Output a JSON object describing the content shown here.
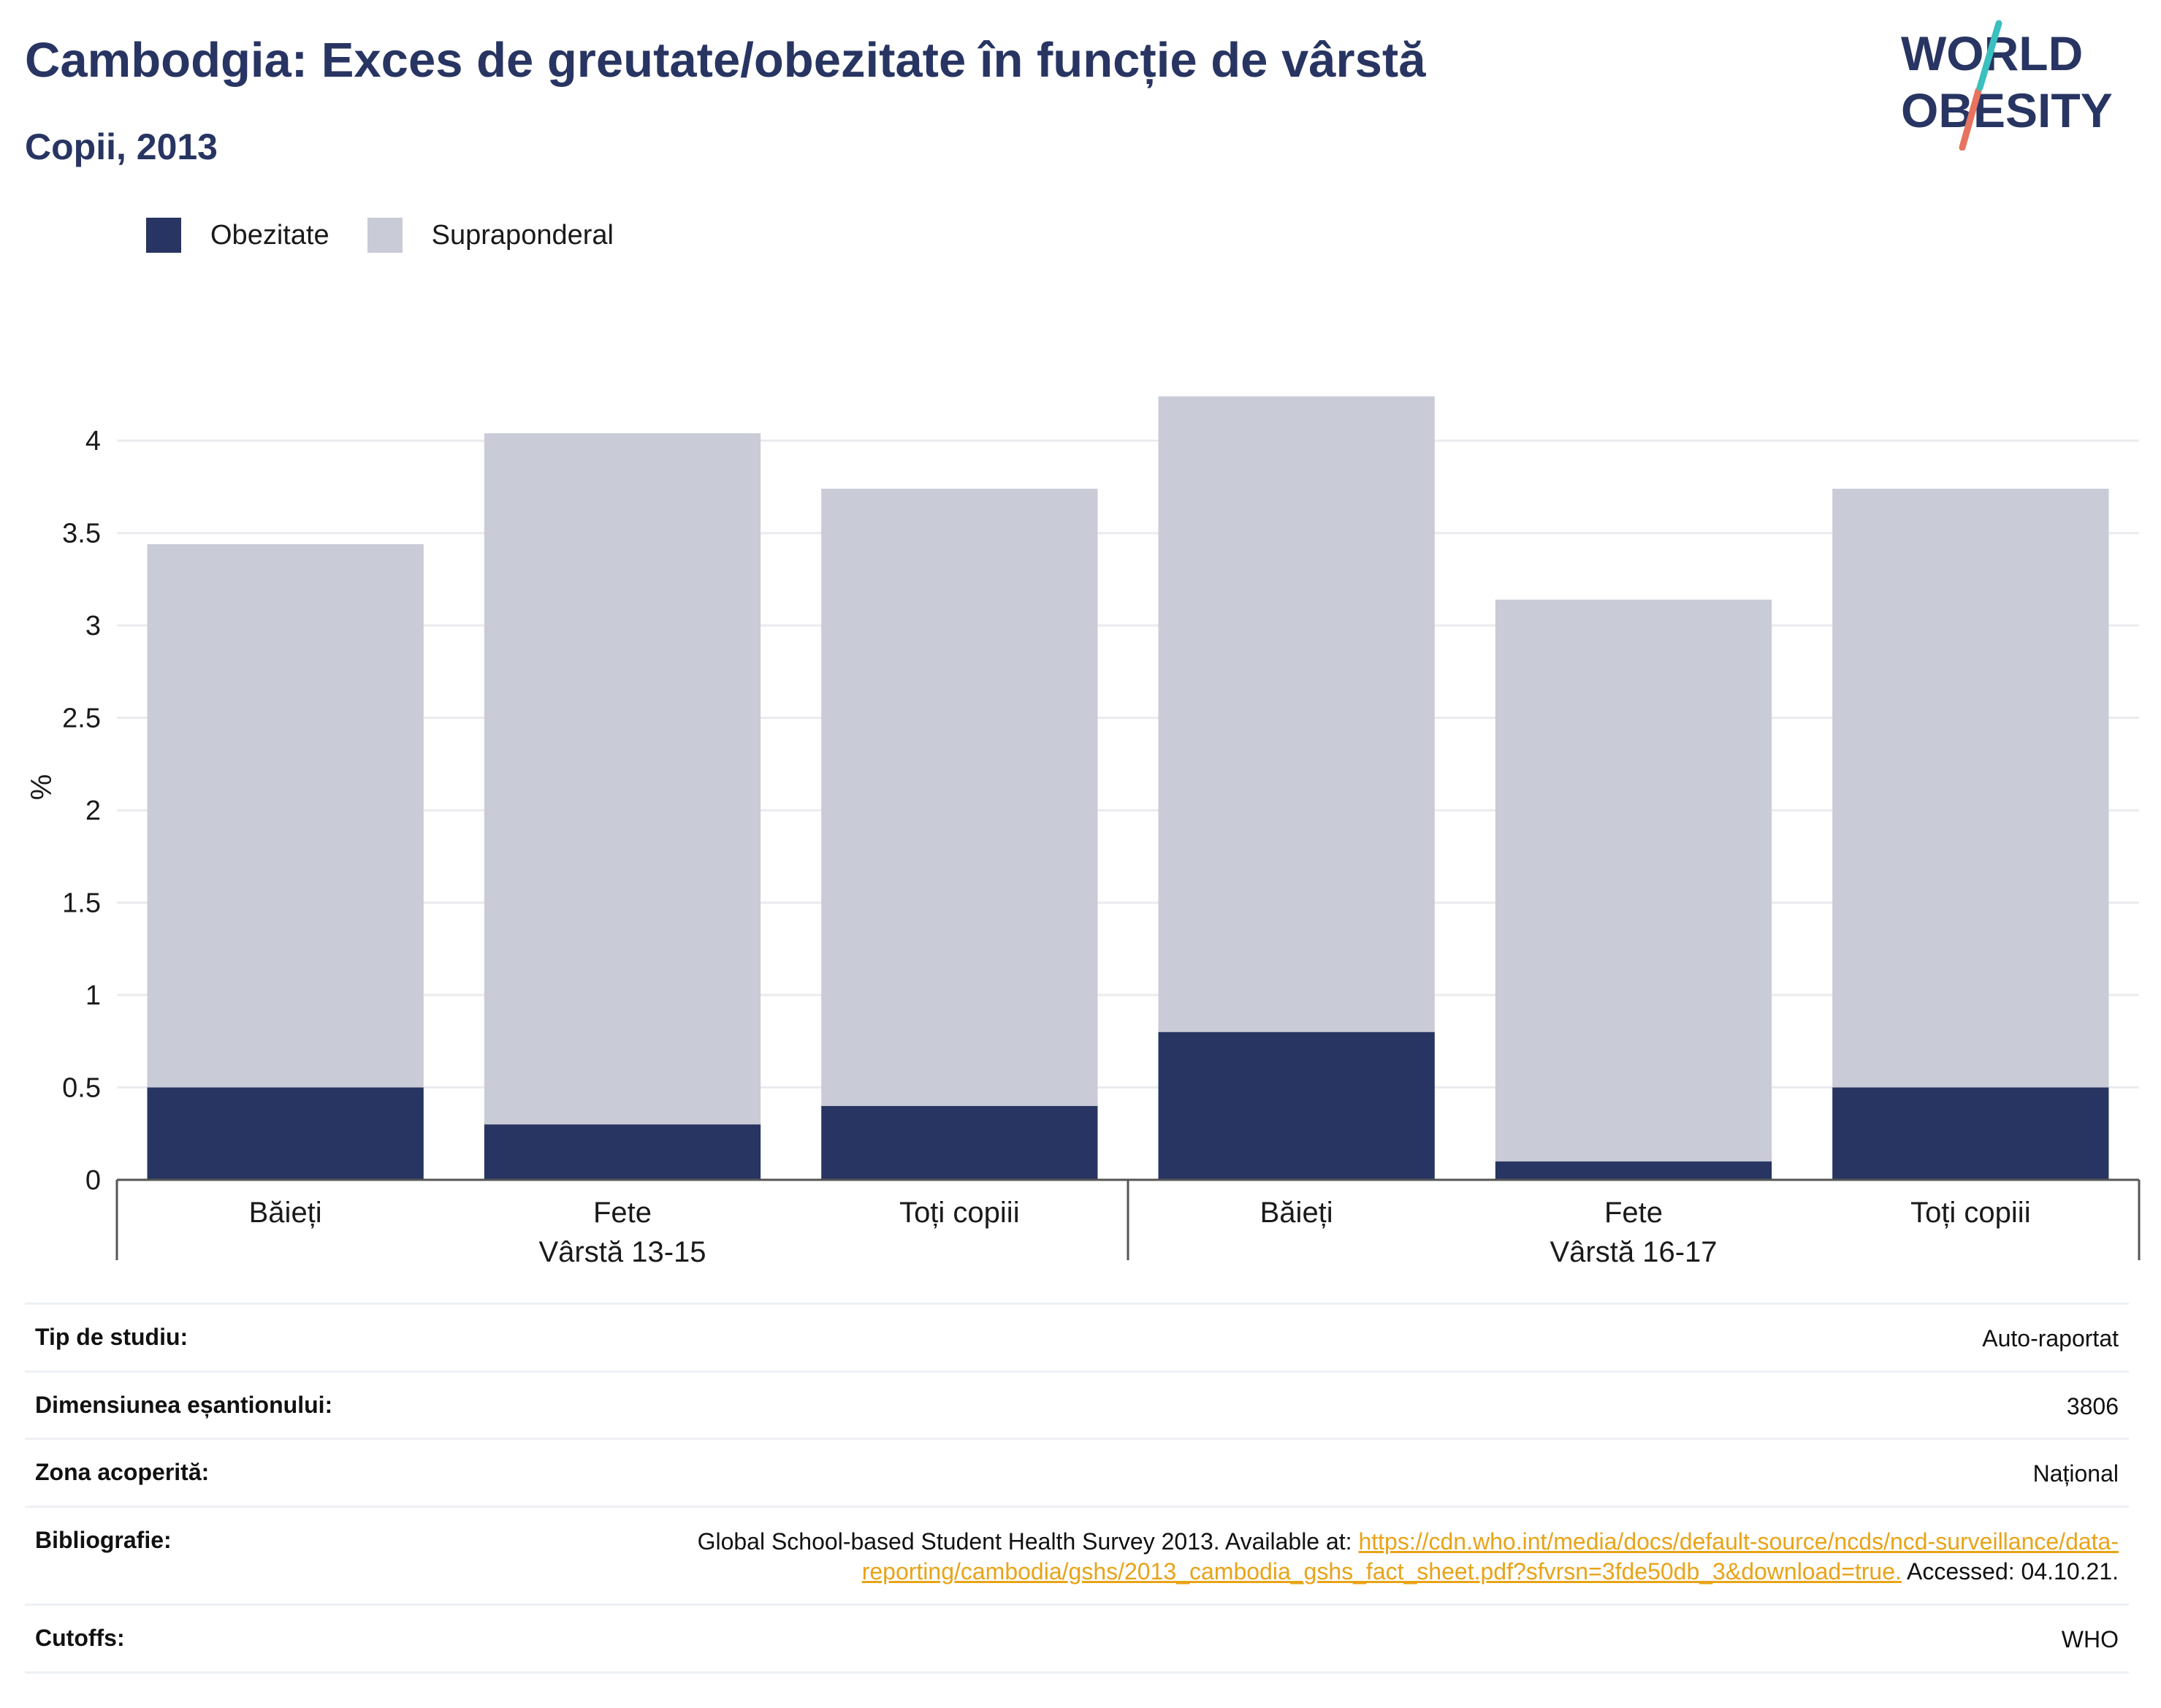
{
  "title": "Cambodgia: Exces de greutate/obezitate în funcție de vârstă",
  "subtitle": "Copii, 2013",
  "logo": {
    "line1": "WORLD",
    "line2": "OBESITY",
    "colors": {
      "text": "#283562",
      "slash_top": "#3bbfbf",
      "slash_bottom": "#e8735f"
    }
  },
  "legend": [
    {
      "label": "Obezitate",
      "color": "#283562"
    },
    {
      "label": "Supraponderal",
      "color": "#c9cbd7"
    }
  ],
  "chart_data": {
    "type": "bar",
    "stacked": true,
    "ylabel": "%",
    "ylim": [
      0,
      4.25
    ],
    "yticks": [
      0,
      0.5,
      1,
      1.5,
      2,
      2.5,
      3,
      3.5,
      4
    ],
    "ytick_labels": [
      "0",
      "0.5",
      "1",
      "1.5",
      "2",
      "2.5",
      "3",
      "3.5",
      "4"
    ],
    "categories": [
      "Băieți",
      "Fete",
      "Toți copiii",
      "Băieți",
      "Fete",
      "Toți copiii"
    ],
    "groups": [
      {
        "label": "Vârstă 13-15",
        "span": [
          0,
          2
        ]
      },
      {
        "label": "Vârstă 16-17",
        "span": [
          3,
          5
        ]
      }
    ],
    "series": [
      {
        "name": "Obezitate",
        "color": "#283562",
        "values": [
          0.5,
          0.3,
          0.4,
          0.8,
          0.1,
          0.5
        ]
      },
      {
        "name": "Supraponderal",
        "color": "#c9cbd7",
        "values": [
          2.94,
          3.74,
          3.34,
          3.44,
          3.04,
          3.24
        ]
      }
    ],
    "grid": true,
    "legend_position": "top-left"
  },
  "info": [
    {
      "key": "Tip de studiu:",
      "value": "Auto-raportat"
    },
    {
      "key": "Dimensiunea eșantionului:",
      "value": "3806"
    },
    {
      "key": "Zona acoperită:",
      "value": "Național"
    },
    {
      "key": "Bibliografie:",
      "value_pre": "Global School-based Student Health Survey 2013. Available at: ",
      "link": "https://cdn.who.int/media/docs/default-source/ncds/ncd-surveillance/data-reporting/cambodia/gshs/2013_cambodia_gshs_fact_sheet.pdf?sfvrsn=3fde50db_3&download=true.",
      "value_post": " Accessed: 04.10.21."
    },
    {
      "key": "Cutoffs:",
      "value": "WHO"
    }
  ]
}
